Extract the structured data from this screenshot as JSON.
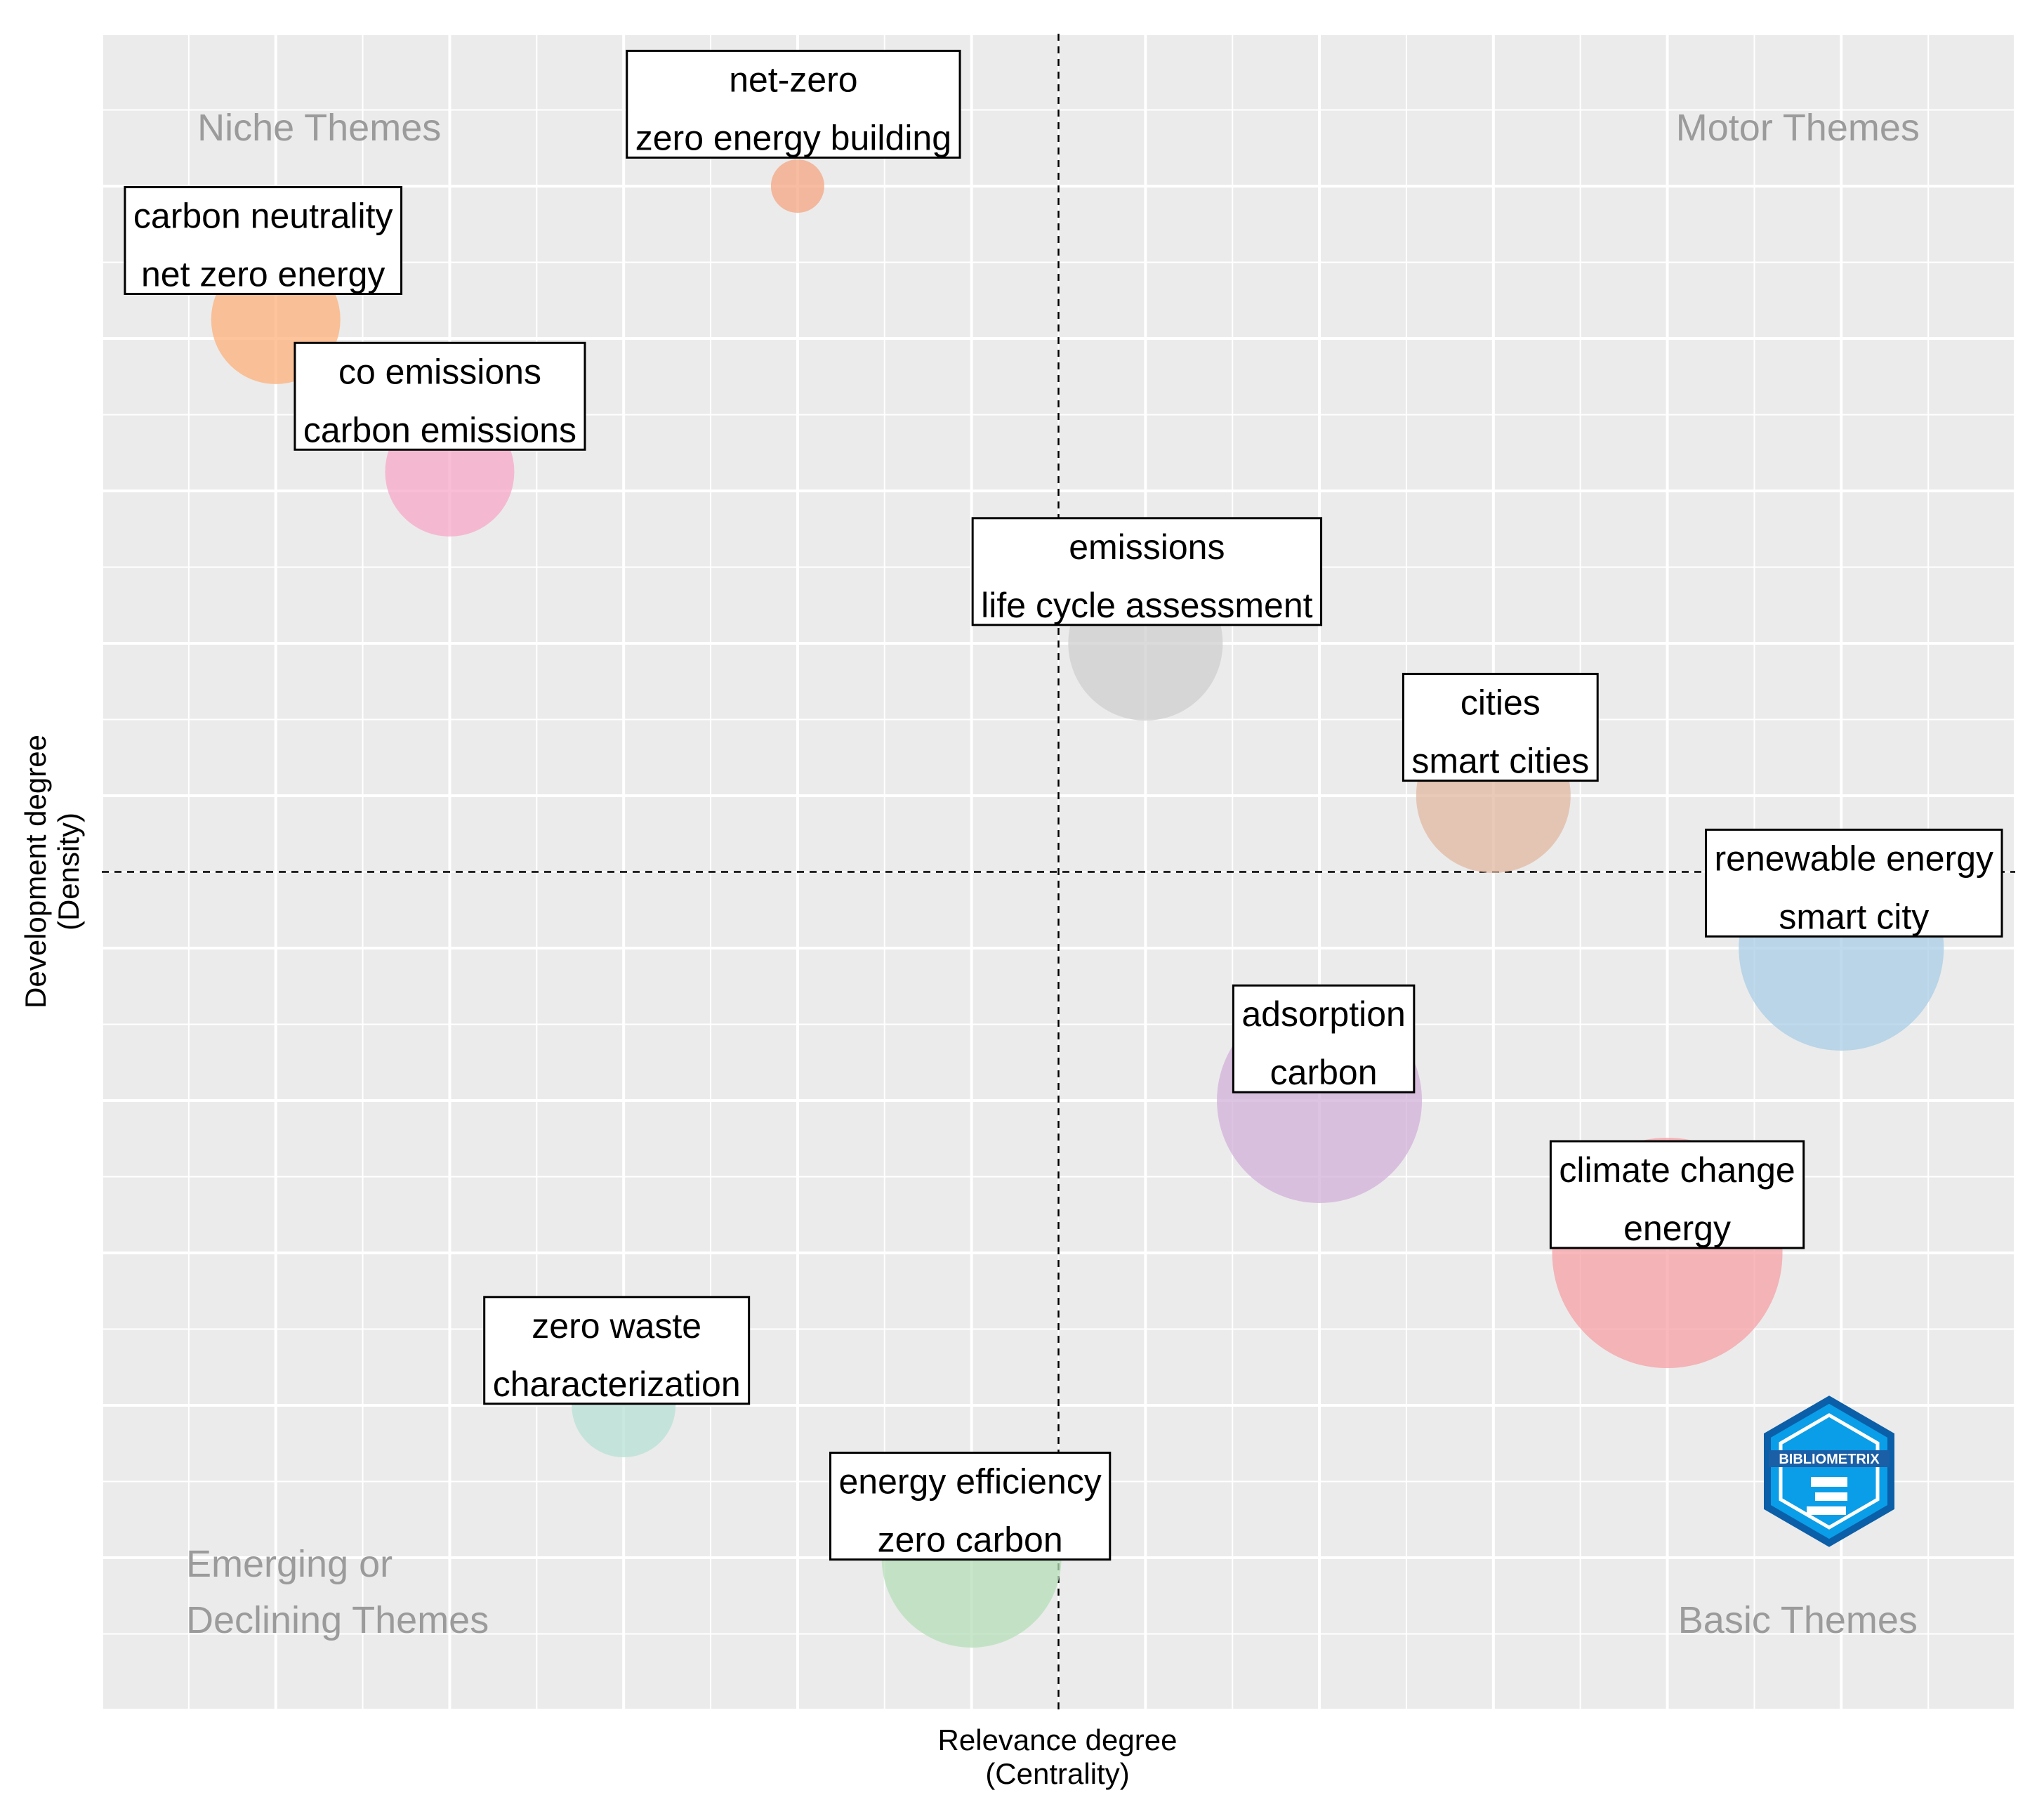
{
  "chart_data": {
    "type": "scatter",
    "title": "",
    "xlabel": [
      "Relevance degree",
      "(Centrality)"
    ],
    "ylabel": [
      "Development degree",
      "(Density)"
    ],
    "xlim": [
      0,
      8.8
    ],
    "ylim": [
      0,
      8.8
    ],
    "reference_lines": {
      "x": 4.4,
      "y": 4.4,
      "style": "dashed"
    },
    "grid": true,
    "background_color": "#ebebeb",
    "quadrant_labels": {
      "top_left": [
        "Niche Themes"
      ],
      "top_right": [
        "Motor Themes"
      ],
      "bottom_left": [
        "Emerging or",
        "Declining Themes"
      ],
      "bottom_right": [
        "Basic Themes"
      ]
    },
    "clusters": [
      {
        "labels": [
          "net-zero",
          "zero energy building"
        ],
        "x": 3.2,
        "y": 8.0,
        "size": 1,
        "color": "#f4a582"
      },
      {
        "labels": [
          "carbon neutrality",
          "net zero energy"
        ],
        "x": 0.8,
        "y": 7.3,
        "size": 4,
        "color": "#fdb07a"
      },
      {
        "labels": [
          "co emissions",
          "carbon emissions"
        ],
        "x": 1.6,
        "y": 6.5,
        "size": 4,
        "color": "#f7a8c8"
      },
      {
        "labels": [
          "emissions",
          "life cycle assessment"
        ],
        "x": 4.8,
        "y": 5.6,
        "size": 5,
        "color": "#cfcfcf"
      },
      {
        "labels": [
          "cities",
          "smart cities"
        ],
        "x": 6.4,
        "y": 4.8,
        "size": 5,
        "color": "#e2b8a2"
      },
      {
        "labels": [
          "renewable energy",
          "smart city"
        ],
        "x": 8.0,
        "y": 4.0,
        "size": 7,
        "color": "#a8cde6"
      },
      {
        "labels": [
          "adsorption",
          "carbon"
        ],
        "x": 5.6,
        "y": 3.2,
        "size": 7,
        "color": "#d3b0da"
      },
      {
        "labels": [
          "climate change",
          "energy"
        ],
        "x": 7.2,
        "y": 2.4,
        "size": 8,
        "color": "#f6a0a6"
      },
      {
        "labels": [
          "zero waste",
          "characterization"
        ],
        "x": 2.4,
        "y": 1.6,
        "size": 3,
        "color": "#b7e0d5"
      },
      {
        "labels": [
          "energy efficiency",
          "zero carbon"
        ],
        "x": 4.0,
        "y": 0.8,
        "size": 6,
        "color": "#b5dfb8"
      }
    ]
  },
  "logo": {
    "name": "bibliometrix-logo",
    "text": "BIBLIOMETRIX"
  }
}
